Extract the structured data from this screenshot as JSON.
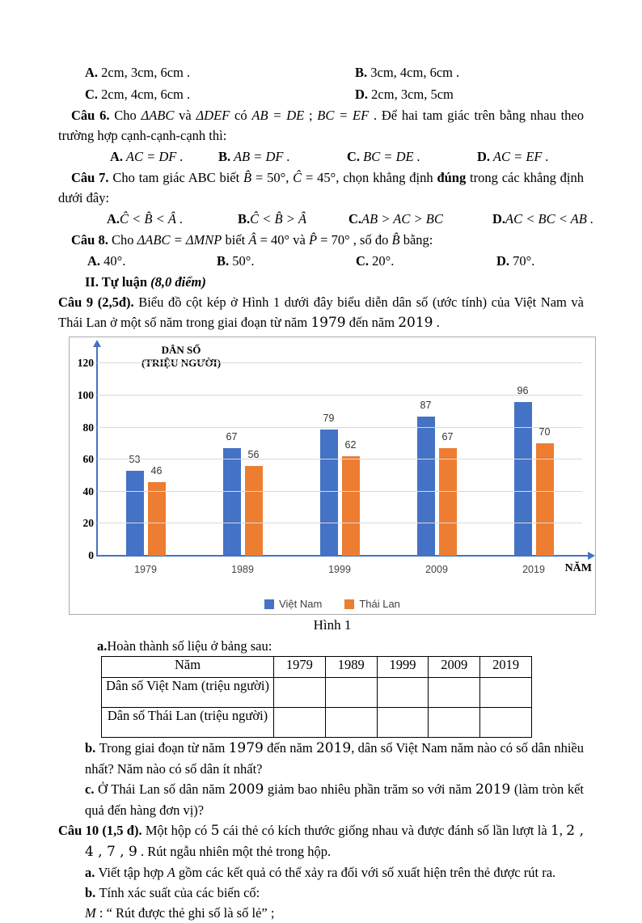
{
  "document": {
    "top_blocks": [
      {
        "kind": "opts",
        "cls": "row-ab",
        "items": [
          {
            "l": "A.",
            "t": " 2cm, 3cm, 6cm ."
          },
          {
            "l": "B.",
            "t": " 3cm, 4cm, 6cm ."
          }
        ]
      },
      {
        "kind": "opts",
        "cls": "row-ab",
        "items": [
          {
            "l": "C.",
            "t": " 2cm, 4cm, 6cm ."
          },
          {
            "l": "D.",
            "t": " 2cm, 3cm, 5cm"
          }
        ]
      },
      {
        "kind": "para",
        "cls": "q",
        "segs": [
          {
            "t": "Câu 6. ",
            "b": true
          },
          {
            "t": "Cho "
          },
          {
            "t": "ΔABC",
            "i": true
          },
          {
            "t": " và "
          },
          {
            "t": "ΔDEF",
            "i": true
          },
          {
            "t": " có "
          },
          {
            "t": "AB = DE",
            "i": true
          },
          {
            "t": " ; "
          },
          {
            "t": "BC = EF",
            "i": true
          },
          {
            "t": " . Để hai tam giác trên bằng nhau theo trường hợp cạnh-cạnh-cạnh thì:"
          }
        ]
      },
      {
        "kind": "opts",
        "cls": "row-q6",
        "items": [
          {
            "l": "A.",
            "t": " AC = DF .",
            "i": true
          },
          {
            "l": "B.",
            "t": " AB = DF .",
            "i": true
          },
          {
            "l": "C.",
            "t": " BC = DE .",
            "i": true
          },
          {
            "l": "D.",
            "t": " AC = EF .",
            "i": true
          }
        ]
      },
      {
        "kind": "para",
        "cls": "q",
        "segs": [
          {
            "t": "Câu 7. ",
            "b": true
          },
          {
            "t": "Cho tam giác ABC biết "
          },
          {
            "t": "B̂",
            "i": true
          },
          {
            "t": " = 50°, "
          },
          {
            "t": "Ĉ",
            "i": true
          },
          {
            "t": " = 45°, chọn khẳng định "
          },
          {
            "t": "đúng",
            "b": true
          },
          {
            "t": " trong các khẳng định dưới đây:"
          }
        ]
      },
      {
        "kind": "opts",
        "cls": "row-q7",
        "items": [
          {
            "l": "A.",
            "t": "Ĉ < B̂ < Â .",
            "i": true
          },
          {
            "l": "B.",
            "t": "Ĉ < B̂ > Â",
            "i": true
          },
          {
            "l": "C.",
            "t": "AB > AC > BC",
            "i": true
          },
          {
            "l": "D.",
            "t": "AC < BC < AB .",
            "i": true
          }
        ]
      },
      {
        "kind": "para",
        "cls": "q",
        "segs": [
          {
            "t": "Câu 8. ",
            "b": true
          },
          {
            "t": "Cho "
          },
          {
            "t": "ΔABC = ΔMNP",
            "i": true
          },
          {
            "t": " biết "
          },
          {
            "t": "Â",
            "i": true
          },
          {
            "t": " = 40° và "
          },
          {
            "t": "P̂",
            "i": true
          },
          {
            "t": " = 70° , số đo "
          },
          {
            "t": "B̂",
            "i": true
          },
          {
            "t": " bằng:"
          }
        ]
      },
      {
        "kind": "opts",
        "cls": "row-q8",
        "items": [
          {
            "l": "A.",
            "t": " 40°."
          },
          {
            "l": "B.",
            "t": " 50°."
          },
          {
            "l": "C.",
            "t": " 20°."
          },
          {
            "l": "D.",
            "t": " 70°."
          }
        ]
      },
      {
        "kind": "para",
        "cls": "tuluan",
        "segs": [
          {
            "t": "II. Tự luận ",
            "b": true
          },
          {
            "t": "(8,0 điểm)",
            "b": true,
            "i": true
          }
        ]
      },
      {
        "kind": "para",
        "cls": "q9",
        "segs": [
          {
            "t": "Câu 9 (2,5đ). ",
            "b": true
          },
          {
            "t": "Biểu đồ cột kép ở Hình 1 dưới đây biểu diễn dân số (ước tính) của Việt Nam và Thái Lan ở một số năm trong giai đoạn từ năm "
          },
          {
            "t": "1979",
            "n": true
          },
          {
            "t": " đến năm "
          },
          {
            "t": "2019",
            "n": true
          },
          {
            "t": " ."
          }
        ]
      }
    ],
    "table_intro": [
      {
        "kind": "para",
        "cls": "intro-a",
        "segs": [
          {
            "t": "a.",
            "b": true
          },
          {
            "t": "Hoàn thành số liệu ở bảng sau:"
          }
        ]
      }
    ],
    "bottom_blocks": [
      {
        "kind": "para",
        "cls": "sub",
        "segs": [
          {
            "t": "b. ",
            "b": true
          },
          {
            "t": "Trong giai đoạn từ năm "
          },
          {
            "t": "1979",
            "n": true
          },
          {
            "t": " đến năm "
          },
          {
            "t": "2019",
            "n": true
          },
          {
            "t": ", dân số Việt Nam năm nào có số dân nhiều nhất? Năm nào có số dân ít nhất?"
          }
        ]
      },
      {
        "kind": "para",
        "cls": "sub",
        "segs": [
          {
            "t": "c. ",
            "b": true
          },
          {
            "t": "Ở Thái Lan số dân năm "
          },
          {
            "t": "2009",
            "n": true
          },
          {
            "t": " giảm bao nhiêu phần trăm so với năm "
          },
          {
            "t": "2019",
            "n": true
          },
          {
            "t": " (làm tròn kết quả đến hàng đơn vị)?"
          }
        ]
      },
      {
        "kind": "para",
        "cls": "hang",
        "segs": [
          {
            "t": "Câu 10 (1,5 đ). ",
            "b": true
          },
          {
            "t": "Một hộp có "
          },
          {
            "t": "5",
            "n": true
          },
          {
            "t": " cái thẻ có kích thước giống nhau và được đánh số lần lượt là "
          },
          {
            "t": "1",
            "n": true
          },
          {
            "t": ", "
          },
          {
            "t": "2 , 4 , 7 , 9",
            "n": true
          },
          {
            "t": " . Rút ngẫu nhiên một thẻ trong hộp."
          }
        ]
      },
      {
        "kind": "para",
        "cls": "sub",
        "segs": [
          {
            "t": "a. ",
            "b": true
          },
          {
            "t": "Viết tập hợp "
          },
          {
            "t": "A",
            "i": true
          },
          {
            "t": " gồm các kết quả có thể xảy ra đối với số xuất hiện trên thẻ được rút ra."
          }
        ]
      },
      {
        "kind": "para",
        "cls": "sub",
        "segs": [
          {
            "t": "b. ",
            "b": true
          },
          {
            "t": "Tính xác suất của các biến cố:"
          }
        ]
      },
      {
        "kind": "para",
        "cls": "sub",
        "segs": [
          {
            "t": "M",
            "i": true
          },
          {
            "t": " : “ Rút được thẻ ghi số là số lẻ” ;"
          }
        ]
      }
    ]
  },
  "chart_data": {
    "type": "bar",
    "ylabel_lines": [
      "DÂN SỐ",
      "(TRIỆU NGƯỜI)"
    ],
    "ylabel": "DÂN SỐ (TRIỆU NGƯỜI)",
    "xlabel": "NĂM",
    "categories": [
      "1979",
      "1989",
      "1999",
      "2009",
      "2019"
    ],
    "series": [
      {
        "name": "Việt Nam",
        "color": "#4472C4",
        "values": [
          53,
          67,
          79,
          87,
          96
        ]
      },
      {
        "name": "Thái Lan",
        "color": "#ED7D31",
        "values": [
          46,
          56,
          62,
          67,
          70
        ]
      }
    ],
    "yticks": [
      0,
      20,
      40,
      60,
      80,
      100,
      120
    ],
    "ylim": [
      0,
      131
    ],
    "grid": true,
    "bar_labels": true,
    "legend_position": "bottom",
    "caption": "Hình 1",
    "axis_color": "#4472C4",
    "gridline_color": "#D9D9D9"
  },
  "table": {
    "header": [
      "Năm",
      "1979",
      "1989",
      "1999",
      "2009",
      "2019"
    ],
    "rows": [
      {
        "label": "Dân số Việt Nam (triệu người)",
        "cells": [
          "",
          "",
          "",
          "",
          ""
        ]
      },
      {
        "label": "Dân số Thái Lan (triệu người)",
        "cells": [
          "",
          "",
          "",
          "",
          ""
        ]
      }
    ]
  }
}
